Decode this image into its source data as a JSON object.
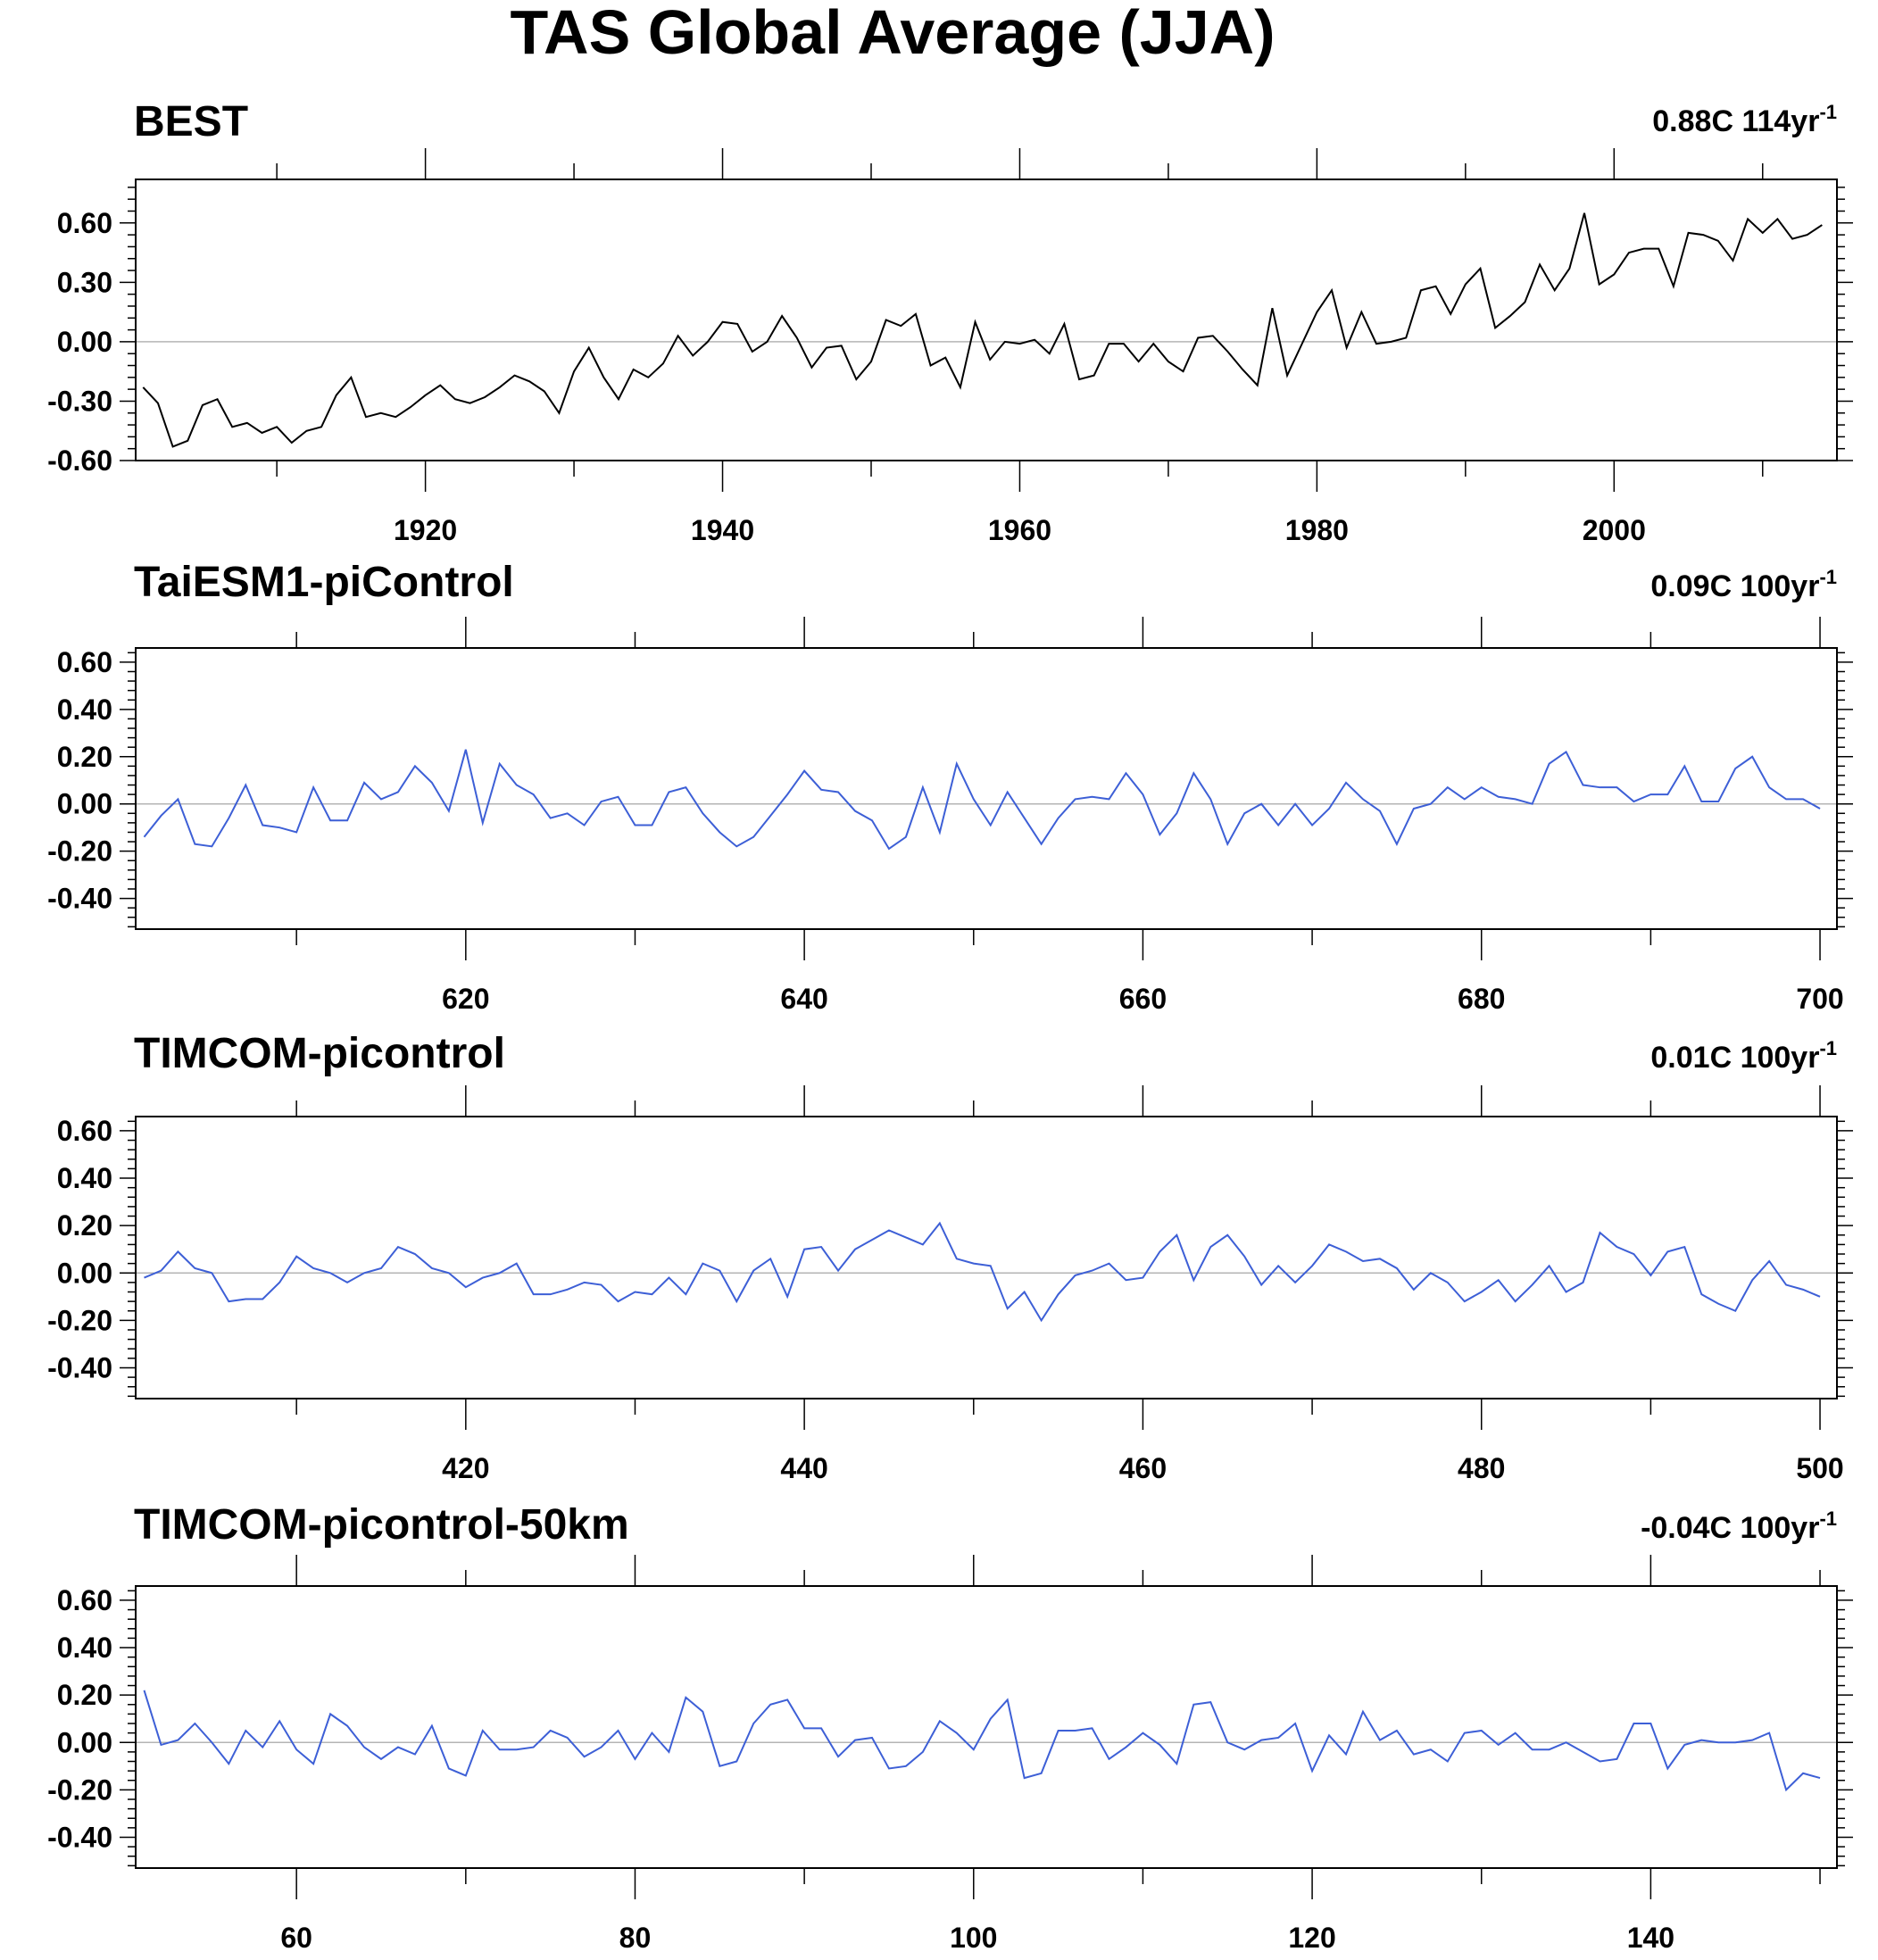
{
  "title": "TAS Global Average (JJA)",
  "chart_data": [
    {
      "type": "line",
      "title": "BEST",
      "trend_label": "0.88C 114yr",
      "trend_exponent": "-1",
      "line_color": "#000000",
      "x_start": 1901,
      "ylim": [
        -0.6,
        0.82
      ],
      "xlim": [
        1900.5,
        2015
      ],
      "y_ticks": [
        -0.6,
        -0.3,
        0.0,
        0.3,
        0.6
      ],
      "y_tick_labels": [
        "-0.60",
        "-0.30",
        "0.00",
        "0.30",
        "0.60"
      ],
      "x_ticks": [
        1920,
        1940,
        1960,
        1980,
        2000
      ],
      "x_tick_labels": [
        "1920",
        "1940",
        "1960",
        "1980",
        "2000"
      ],
      "values": [
        -0.23,
        -0.31,
        -0.53,
        -0.5,
        -0.32,
        -0.29,
        -0.43,
        -0.41,
        -0.46,
        -0.43,
        -0.51,
        -0.45,
        -0.43,
        -0.27,
        -0.18,
        -0.38,
        -0.36,
        -0.38,
        -0.33,
        -0.27,
        -0.22,
        -0.29,
        -0.31,
        -0.28,
        -0.23,
        -0.17,
        -0.2,
        -0.25,
        -0.36,
        -0.15,
        -0.03,
        -0.18,
        -0.29,
        -0.14,
        -0.18,
        -0.11,
        0.03,
        -0.07,
        0.0,
        0.1,
        0.09,
        -0.05,
        0.0,
        0.13,
        0.02,
        -0.13,
        -0.03,
        -0.02,
        -0.19,
        -0.1,
        0.11,
        0.08,
        0.14,
        -0.12,
        -0.08,
        -0.23,
        0.1,
        -0.09,
        0.0,
        -0.01,
        0.01,
        -0.06,
        0.09,
        -0.19,
        -0.17,
        -0.01,
        -0.01,
        -0.1,
        -0.01,
        -0.1,
        -0.15,
        0.02,
        0.03,
        -0.05,
        -0.14,
        -0.22,
        0.17,
        -0.17,
        -0.01,
        0.15,
        0.26,
        -0.03,
        0.15,
        -0.01,
        0.0,
        0.02,
        0.26,
        0.28,
        0.14,
        0.29,
        0.37,
        0.07,
        0.13,
        0.2,
        0.39,
        0.26,
        0.37,
        0.65,
        0.29,
        0.34,
        0.45,
        0.47,
        0.47,
        0.28,
        0.55,
        0.54,
        0.51,
        0.41,
        0.62,
        0.55,
        0.62,
        0.52,
        0.54,
        0.59
      ]
    },
    {
      "type": "line",
      "title": "TaiESM1-piControl",
      "trend_label": "0.09C 100yr",
      "trend_exponent": "-1",
      "line_color": "#3d5fd6",
      "x_start": 601,
      "ylim": [
        -0.53,
        0.66
      ],
      "xlim": [
        600.5,
        701
      ],
      "y_ticks": [
        -0.4,
        -0.2,
        0.0,
        0.2,
        0.4,
        0.6
      ],
      "y_tick_labels": [
        "-0.40",
        "-0.20",
        "0.00",
        "0.20",
        "0.40",
        "0.60"
      ],
      "x_ticks": [
        620,
        640,
        660,
        680,
        700
      ],
      "x_tick_labels": [
        "620",
        "640",
        "660",
        "680",
        "700"
      ],
      "values": [
        -0.14,
        -0.05,
        0.02,
        -0.17,
        -0.18,
        -0.06,
        0.08,
        -0.09,
        -0.1,
        -0.12,
        0.07,
        -0.07,
        -0.07,
        0.09,
        0.02,
        0.05,
        0.16,
        0.09,
        -0.03,
        0.23,
        -0.08,
        0.17,
        0.08,
        0.04,
        -0.06,
        -0.04,
        -0.09,
        0.01,
        0.03,
        -0.09,
        -0.09,
        0.05,
        0.07,
        -0.04,
        -0.12,
        -0.18,
        -0.14,
        -0.05,
        0.04,
        0.14,
        0.06,
        0.05,
        -0.03,
        -0.07,
        -0.19,
        -0.14,
        0.07,
        -0.12,
        0.17,
        0.02,
        -0.09,
        0.05,
        -0.06,
        -0.17,
        -0.06,
        0.02,
        0.03,
        0.02,
        0.13,
        0.04,
        -0.13,
        -0.04,
        0.13,
        0.02,
        -0.17,
        -0.04,
        0.0,
        -0.09,
        0.0,
        -0.09,
        -0.02,
        0.09,
        0.02,
        -0.03,
        -0.17,
        -0.02,
        0.0,
        0.07,
        0.02,
        0.07,
        0.03,
        0.02,
        0.0,
        0.17,
        0.22,
        0.08,
        0.07,
        0.07,
        0.01,
        0.04,
        0.04,
        0.16,
        0.01,
        0.01,
        0.15,
        0.2,
        0.07,
        0.02,
        0.02,
        -0.02
      ]
    },
    {
      "type": "line",
      "title": "TIMCOM-picontrol",
      "trend_label": "0.01C 100yr",
      "trend_exponent": "-1",
      "line_color": "#3d5fd6",
      "x_start": 401,
      "ylim": [
        -0.53,
        0.66
      ],
      "xlim": [
        400.5,
        501
      ],
      "y_ticks": [
        -0.4,
        -0.2,
        0.0,
        0.2,
        0.4,
        0.6
      ],
      "y_tick_labels": [
        "-0.40",
        "-0.20",
        "0.00",
        "0.20",
        "0.40",
        "0.60"
      ],
      "x_ticks": [
        420,
        440,
        460,
        480,
        500
      ],
      "x_tick_labels": [
        "420",
        "440",
        "460",
        "480",
        "500"
      ],
      "values": [
        -0.02,
        0.01,
        0.09,
        0.02,
        0.0,
        -0.12,
        -0.11,
        -0.11,
        -0.04,
        0.07,
        0.02,
        0.0,
        -0.04,
        0.0,
        0.02,
        0.11,
        0.08,
        0.02,
        0.0,
        -0.06,
        -0.02,
        0.0,
        0.04,
        -0.09,
        -0.09,
        -0.07,
        -0.04,
        -0.05,
        -0.12,
        -0.08,
        -0.09,
        -0.02,
        -0.09,
        0.04,
        0.01,
        -0.12,
        0.01,
        0.06,
        -0.1,
        0.1,
        0.11,
        0.01,
        0.1,
        0.14,
        0.18,
        0.15,
        0.12,
        0.21,
        0.06,
        0.04,
        0.03,
        -0.15,
        -0.08,
        -0.2,
        -0.09,
        -0.01,
        0.01,
        0.04,
        -0.03,
        -0.02,
        0.09,
        0.16,
        -0.03,
        0.11,
        0.16,
        0.07,
        -0.05,
        0.03,
        -0.04,
        0.03,
        0.12,
        0.09,
        0.05,
        0.06,
        0.02,
        -0.07,
        0.0,
        -0.04,
        -0.12,
        -0.08,
        -0.03,
        -0.12,
        -0.05,
        0.03,
        -0.08,
        -0.04,
        0.17,
        0.11,
        0.08,
        -0.01,
        0.09,
        0.11,
        -0.09,
        -0.13,
        -0.16,
        -0.03,
        0.05,
        -0.05,
        -0.07,
        -0.1
      ]
    },
    {
      "type": "line",
      "title": "TIMCOM-picontrol-50km",
      "trend_label": "-0.04C 100yr",
      "trend_exponent": "-1",
      "line_color": "#3d5fd6",
      "x_start": 51,
      "ylim": [
        -0.53,
        0.66
      ],
      "xlim": [
        50.5,
        151
      ],
      "y_ticks": [
        -0.4,
        -0.2,
        0.0,
        0.2,
        0.4,
        0.6
      ],
      "y_tick_labels": [
        "-0.40",
        "-0.20",
        "0.00",
        "0.20",
        "0.40",
        "0.60"
      ],
      "x_ticks": [
        60,
        80,
        100,
        120,
        140
      ],
      "x_tick_labels": [
        "60",
        "80",
        "100",
        "120",
        "140"
      ],
      "values": [
        0.22,
        -0.01,
        0.01,
        0.08,
        0.0,
        -0.09,
        0.05,
        -0.02,
        0.09,
        -0.03,
        -0.09,
        0.12,
        0.07,
        -0.02,
        -0.07,
        -0.02,
        -0.05,
        0.07,
        -0.11,
        -0.14,
        0.05,
        -0.03,
        -0.03,
        -0.02,
        0.05,
        0.02,
        -0.06,
        -0.02,
        0.05,
        -0.07,
        0.04,
        -0.04,
        0.19,
        0.13,
        -0.1,
        -0.08,
        0.08,
        0.16,
        0.18,
        0.06,
        0.06,
        -0.06,
        0.01,
        0.02,
        -0.11,
        -0.1,
        -0.04,
        0.09,
        0.04,
        -0.03,
        0.1,
        0.18,
        -0.15,
        -0.13,
        0.05,
        0.05,
        0.06,
        -0.07,
        -0.02,
        0.04,
        -0.01,
        -0.09,
        0.16,
        0.17,
        0.0,
        -0.03,
        0.01,
        0.02,
        0.08,
        -0.12,
        0.03,
        -0.05,
        0.13,
        0.01,
        0.05,
        -0.05,
        -0.03,
        -0.08,
        0.04,
        0.05,
        -0.01,
        0.04,
        -0.03,
        -0.03,
        0.0,
        -0.04,
        -0.08,
        -0.07,
        0.08,
        0.08,
        -0.11,
        -0.01,
        0.01,
        0.0,
        0.0,
        0.01,
        0.04,
        -0.2,
        -0.13,
        -0.15
      ]
    }
  ]
}
